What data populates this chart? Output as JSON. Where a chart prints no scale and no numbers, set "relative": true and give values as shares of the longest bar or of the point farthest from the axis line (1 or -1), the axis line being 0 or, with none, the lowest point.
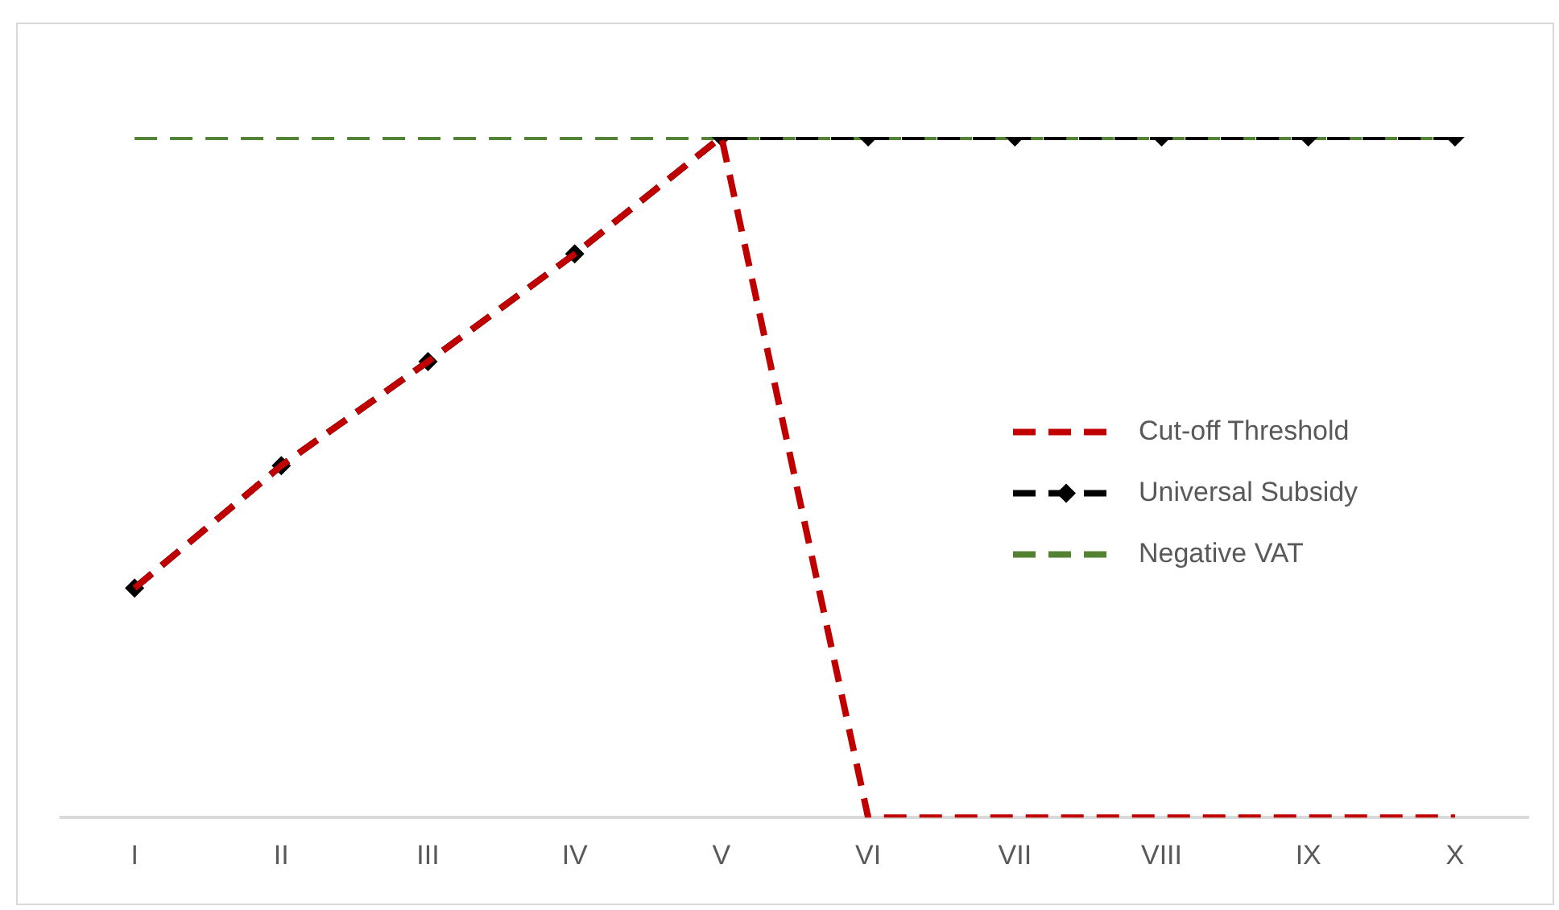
{
  "chart_data": {
    "type": "line",
    "relative": true,
    "categories": [
      "I",
      "II",
      "III",
      "IV",
      "V",
      "VI",
      "VII",
      "VIII",
      "IX",
      "X"
    ],
    "series": [
      {
        "name": "Cut-off Threshold",
        "color": "#c00000",
        "values": [
          0.337,
          0.517,
          0.67,
          0.828,
          1,
          0,
          0,
          0,
          0,
          0
        ],
        "line_style": "dashed",
        "marker": "none"
      },
      {
        "name": "Universal Subsidy",
        "color": "#000000",
        "values": [
          0.337,
          0.517,
          0.67,
          0.828,
          1,
          1,
          1,
          1,
          1,
          1
        ],
        "line_style": "dashed",
        "marker": "diamond"
      },
      {
        "name": "Negative VAT",
        "color": "#548235",
        "values": [
          1,
          1,
          1,
          1,
          1,
          1,
          1,
          1,
          1,
          1
        ],
        "line_style": "dashed",
        "marker": "none"
      }
    ],
    "grid": false,
    "legend": "right"
  }
}
